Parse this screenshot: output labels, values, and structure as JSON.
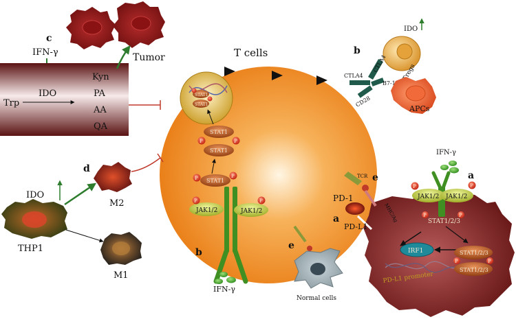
{
  "labels": {
    "panel_c": "c",
    "ifn_top": "IFN-γ",
    "tumor_top": "Tumor",
    "trp": "Trp",
    "ido_box": "IDO",
    "kyn": "Kyn",
    "pa": "PA",
    "aa": "AA",
    "qa": "QA",
    "t_cells": "T cells",
    "stat1_nuc_a": "STAT1",
    "stat1_nuc_b": "STAT1",
    "stat1_dimer_a": "STAT1",
    "stat1_dimer_b": "STAT1",
    "stat1_mono": "STAT1",
    "p": "P",
    "jak_left_t": "JAK1/2",
    "jak_right_t": "JAK1/2",
    "ifn_bottom": "IFN-γ",
    "panel_b_bottom": "b",
    "panel_d": "d",
    "m2": "M2",
    "ido_left": "IDO",
    "thp1": "THP1",
    "m1": "M1",
    "panel_b_top": "b",
    "ido_treg": "IDO",
    "tregs": "Tregs",
    "ctla4_a": "CTLA4",
    "ctla4_b": "CTLA4",
    "b7": "B7-1/2",
    "cd28": "CD28",
    "apcs": "APCs",
    "tcr": "TCR",
    "panel_e_top": "e",
    "mhc": "MHC/Ag",
    "pd1": "PD-1",
    "panel_a_mid": "a",
    "pdl1": "PD-L1",
    "panel_e_bottom": "e",
    "normal_cells": "Normal cells",
    "ifn_right": "IFN-γ",
    "panel_a_right": "a",
    "jak_tumor_a": "JAK1/2",
    "jak_tumor_b": "JAK1/2",
    "stat123_a": "STAT1/2/3",
    "irf1": "IRF1",
    "pdl1_promoter": "PD-L1 promoter",
    "stat123_b": "STAT1/2/3",
    "stat123_c": "STAT1/2/3"
  },
  "colors": {
    "t_cell": "#f08a1e",
    "tumor": "#8a1a1a",
    "receptor_green": "#3f8f22",
    "jak_yellow": "#c8d23a",
    "stat_brown": "#b5561c",
    "phospho_red": "#d8331f",
    "inhibit_red": "#c0392b",
    "activate_green": "#2e7d2e"
  }
}
